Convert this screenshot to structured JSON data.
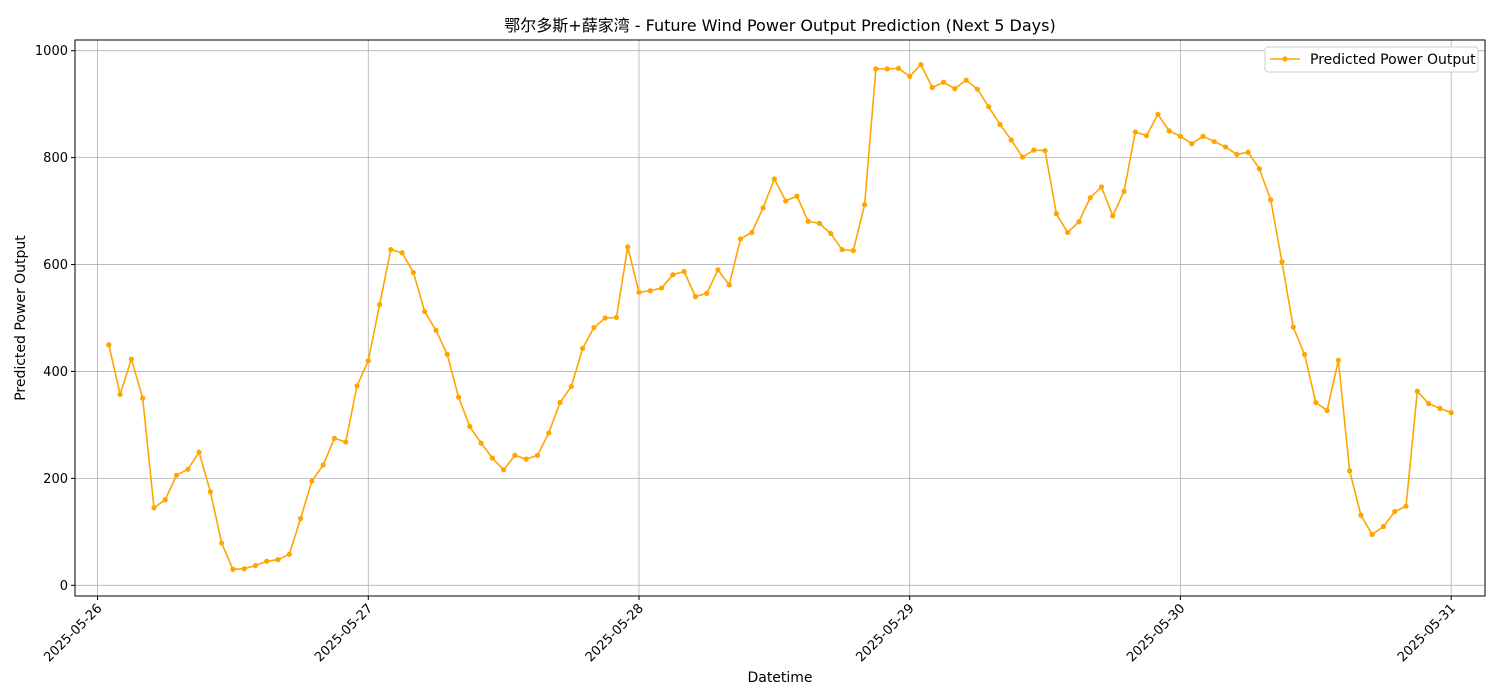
{
  "chart_data": {
    "type": "line",
    "title": "鄂尔多斯+薛家湾 - Future Wind Power Output Prediction (Next 5 Days)",
    "xlabel": "Datetime",
    "ylabel": "Predicted Power Output",
    "xlim": [
      "2025-05-25T22:00",
      "2025-05-31T03:00"
    ],
    "ylim": [
      -20,
      1020
    ],
    "x_ticks": [
      "2025-05-26",
      "2025-05-27",
      "2025-05-28",
      "2025-05-29",
      "2025-05-30",
      "2025-05-31"
    ],
    "y_ticks": [
      0,
      200,
      400,
      600,
      800,
      1000
    ],
    "grid": true,
    "legend_position": "top-right",
    "color": "#FFA500",
    "series": [
      {
        "name": "Predicted Power Output",
        "start": "2025-05-26T01:00",
        "interval": "1h",
        "values": [
          450,
          357,
          423,
          350,
          145,
          160,
          206,
          217,
          249,
          175,
          79,
          30,
          31,
          37,
          45,
          48,
          58,
          125,
          195,
          225,
          275,
          268,
          373,
          420,
          525,
          628,
          622,
          585,
          512,
          477,
          432,
          352,
          297,
          266,
          238,
          216,
          243,
          236,
          243,
          285,
          342,
          372,
          443,
          482,
          500,
          501,
          633,
          548,
          551,
          556,
          581,
          587,
          540,
          546,
          590,
          562,
          648,
          660,
          706,
          760,
          719,
          728,
          681,
          677,
          658,
          628,
          626,
          712,
          966,
          966,
          967,
          952,
          974,
          931,
          941,
          929,
          945,
          928,
          895,
          862,
          833,
          801,
          814,
          813,
          695,
          660,
          680,
          725,
          745,
          691,
          737,
          848,
          841,
          881,
          850,
          840,
          826,
          840,
          830,
          820,
          806,
          810,
          779,
          721,
          605,
          483,
          432,
          342,
          327,
          421,
          214,
          131,
          95,
          110,
          138,
          148,
          363,
          340,
          331,
          323
        ]
      }
    ]
  }
}
